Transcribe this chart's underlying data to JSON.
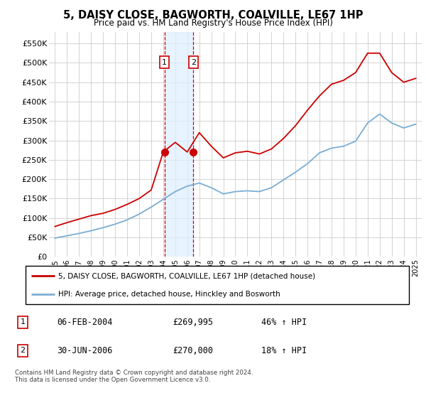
{
  "title": "5, DAISY CLOSE, BAGWORTH, COALVILLE, LE67 1HP",
  "subtitle": "Price paid vs. HM Land Registry's House Price Index (HPI)",
  "years": [
    1995,
    1996,
    1997,
    1998,
    1999,
    2000,
    2001,
    2002,
    2003,
    2004,
    2005,
    2006,
    2007,
    2008,
    2009,
    2010,
    2011,
    2012,
    2013,
    2014,
    2015,
    2016,
    2017,
    2018,
    2019,
    2020,
    2021,
    2022,
    2023,
    2024,
    2025
  ],
  "hpi_values": [
    48000,
    54000,
    60000,
    67000,
    75000,
    84000,
    95000,
    110000,
    128000,
    148000,
    168000,
    182000,
    190000,
    178000,
    162000,
    168000,
    170000,
    168000,
    178000,
    198000,
    218000,
    240000,
    268000,
    280000,
    285000,
    298000,
    345000,
    368000,
    345000,
    332000,
    342000
  ],
  "red_values": [
    78000,
    88000,
    97000,
    106000,
    112000,
    122000,
    135000,
    150000,
    172000,
    270000,
    295000,
    270000,
    320000,
    285000,
    255000,
    268000,
    272000,
    265000,
    278000,
    305000,
    338000,
    378000,
    415000,
    445000,
    455000,
    475000,
    525000,
    525000,
    475000,
    450000,
    460000
  ],
  "sale1_year": 2004.1,
  "sale1_value": 269995,
  "sale2_year": 2006.5,
  "sale2_value": 270000,
  "ylim": [
    0,
    580000
  ],
  "yticks": [
    0,
    50000,
    100000,
    150000,
    200000,
    250000,
    300000,
    350000,
    400000,
    450000,
    500000,
    550000
  ],
  "ytick_labels": [
    "£0",
    "£50K",
    "£100K",
    "£150K",
    "£200K",
    "£250K",
    "£300K",
    "£350K",
    "£400K",
    "£450K",
    "£500K",
    "£550K"
  ],
  "red_color": "#cc0000",
  "blue_color": "#7aadd4",
  "bg_color": "#ffffff",
  "grid_color": "#cccccc",
  "sale_box_fill": "#ddeeff",
  "legend_label_red": "5, DAISY CLOSE, BAGWORTH, COALVILLE, LE67 1HP (detached house)",
  "legend_label_blue": "HPI: Average price, detached house, Hinckley and Bosworth",
  "table_row1": [
    "1",
    "06-FEB-2004",
    "£269,995",
    "46% ↑ HPI"
  ],
  "table_row2": [
    "2",
    "30-JUN-2006",
    "£270,000",
    "18% ↑ HPI"
  ],
  "footnote": "Contains HM Land Registry data © Crown copyright and database right 2024.\nThis data is licensed under the Open Government Licence v3.0."
}
